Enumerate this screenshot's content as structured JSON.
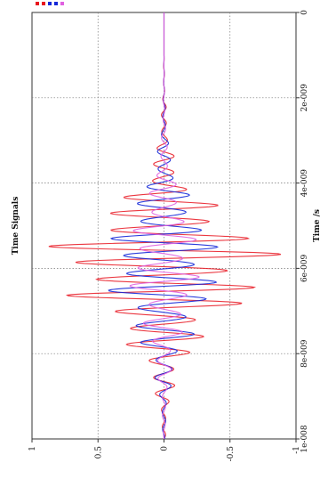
{
  "chart_data": {
    "type": "line",
    "title": "Time Signals",
    "xlabel": "Time /s",
    "ylabel": "",
    "xlim": [
      0,
      1e-08
    ],
    "ylim": [
      -1,
      1
    ],
    "x_ticks": [
      0,
      2e-09,
      4e-09,
      6e-09,
      8e-09,
      1e-08
    ],
    "x_tick_labels": [
      "0",
      "2e-009",
      "4e-009",
      "6e-009",
      "8e-009",
      "1e-008"
    ],
    "y_ticks": [
      1,
      0.5,
      0,
      -0.5,
      -1
    ],
    "y_tick_labels": [
      "1",
      "0.5",
      "0",
      "-0.5",
      "-1"
    ],
    "grid": true,
    "legend_position": "top-right",
    "series": [
      {
        "color": "#e8141e",
        "x": [
          0,
          1e-09,
          2e-09,
          3e-09,
          3.6e-09,
          4e-09,
          4.4e-09,
          4.8e-09,
          5.2e-09,
          5.6e-09,
          6e-09,
          6.4e-09,
          6.8e-09,
          7.2e-09,
          7.6e-09,
          8e-09,
          8.4e-09,
          8.8e-09,
          9.2e-09,
          9.6e-09,
          1e-08
        ],
        "envelope": [
          0,
          0,
          0.01,
          0.04,
          0.1,
          0.18,
          0.35,
          0.58,
          0.8,
          0.93,
          0.95,
          0.85,
          0.66,
          0.48,
          0.34,
          0.22,
          0.14,
          0.08,
          0.04,
          0.02,
          0.01
        ]
      },
      {
        "color": "#1428d8",
        "x": [
          0,
          1e-09,
          2e-09,
          3e-09,
          3.6e-09,
          4e-09,
          4.4e-09,
          4.8e-09,
          5.2e-09,
          5.6e-09,
          6e-09,
          6.4e-09,
          6.8e-09,
          7.2e-09,
          7.6e-09,
          8e-09,
          8.4e-09,
          8.8e-09,
          9.2e-09,
          9.6e-09,
          1e-08
        ],
        "envelope": [
          0,
          0,
          0.005,
          0.03,
          0.08,
          0.13,
          0.22,
          0.32,
          0.4,
          0.44,
          0.46,
          0.44,
          0.38,
          0.3,
          0.22,
          0.14,
          0.09,
          0.05,
          0.03,
          0.015,
          0.005
        ]
      },
      {
        "color": "#e060e0",
        "x": [
          0,
          1e-09,
          2e-09,
          3e-09,
          3.6e-09,
          4e-09,
          4.4e-09,
          4.8e-09,
          5.2e-09,
          5.6e-09,
          6e-09,
          6.4e-09,
          6.8e-09,
          7.2e-09,
          7.6e-09,
          8e-09,
          8.4e-09,
          8.8e-09,
          9.2e-09,
          9.6e-09,
          1e-08
        ],
        "envelope": [
          0,
          0,
          0.004,
          0.02,
          0.05,
          0.09,
          0.14,
          0.2,
          0.25,
          0.28,
          0.29,
          0.27,
          0.23,
          0.18,
          0.13,
          0.09,
          0.06,
          0.03,
          0.02,
          0.01,
          0.003
        ]
      }
    ],
    "legend_colors": [
      "#e8141e",
      "#e8141e",
      "#1428d8",
      "#1428d8",
      "#e060e0"
    ]
  }
}
